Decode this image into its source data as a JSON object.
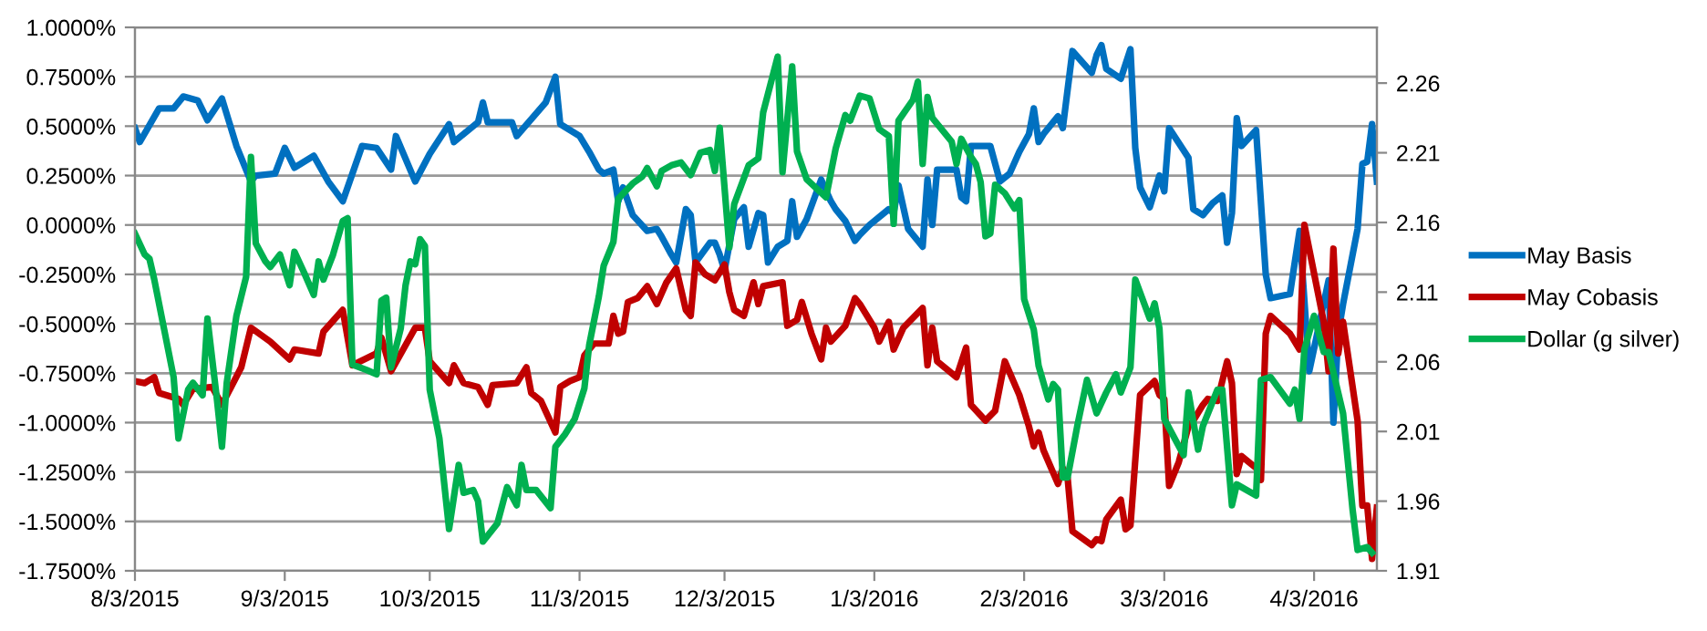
{
  "chart_data": {
    "type": "line",
    "legend": "right",
    "grid": "y",
    "marker": "none",
    "line_style": "solid",
    "xlim": [
      "2015-08-03",
      "2016-04-16"
    ],
    "xticks": [
      {
        "value": "2015-08-03",
        "label": "8/3/2015"
      },
      {
        "value": "2015-09-03",
        "label": "9/3/2015"
      },
      {
        "value": "2015-10-03",
        "label": "10/3/2015"
      },
      {
        "value": "2015-11-03",
        "label": "11/3/2015"
      },
      {
        "value": "2015-12-03",
        "label": "12/3/2015"
      },
      {
        "value": "2016-01-03",
        "label": "1/3/2016"
      },
      {
        "value": "2016-02-03",
        "label": "2/3/2016"
      },
      {
        "value": "2016-03-03",
        "label": "3/3/2016"
      },
      {
        "value": "2016-04-03",
        "label": "4/3/2016"
      }
    ],
    "ylim": [
      -1.75,
      1.0
    ],
    "yticks": [
      {
        "value": -1.75,
        "label": "-1.7500%"
      },
      {
        "value": -1.5,
        "label": "-1.5000%"
      },
      {
        "value": -1.25,
        "label": "-1.2500%"
      },
      {
        "value": -1.0,
        "label": "-1.0000%"
      },
      {
        "value": -0.75,
        "label": "-0.7500%"
      },
      {
        "value": -0.5,
        "label": "-0.5000%"
      },
      {
        "value": -0.25,
        "label": "-0.2500%"
      },
      {
        "value": 0,
        "label": "0.0000%"
      },
      {
        "value": 0.25,
        "label": "0.2500%"
      },
      {
        "value": 0.5,
        "label": "0.5000%"
      },
      {
        "value": 0.75,
        "label": "0.7500%"
      },
      {
        "value": 1.0,
        "label": "1.0000%"
      }
    ],
    "y2lim": [
      1.91,
      2.3
    ],
    "y2ticks": [
      1.91,
      1.96,
      2.01,
      2.06,
      2.11,
      2.16,
      2.21,
      2.26
    ],
    "series": [
      {
        "name": "May Basis",
        "color": "#0070c0",
        "x": [
          "2015-08-03",
          "2015-08-04",
          "2015-08-08",
          "2015-08-11",
          "2015-08-13",
          "2015-08-16",
          "2015-08-18",
          "2015-08-21",
          "2015-08-24",
          "2015-08-27",
          "2015-08-28",
          "2015-09-01",
          "2015-09-03",
          "2015-09-05",
          "2015-09-09",
          "2015-09-12",
          "2015-09-15",
          "2015-09-19",
          "2015-09-22",
          "2015-09-25",
          "2015-09-26",
          "2015-09-30",
          "2015-10-03",
          "2015-10-07",
          "2015-10-08",
          "2015-10-13",
          "2015-10-14",
          "2015-10-15",
          "2015-10-20",
          "2015-10-21",
          "2015-10-27",
          "2015-10-29",
          "2015-10-30",
          "2015-11-03",
          "2015-11-05",
          "2015-11-07",
          "2015-11-08",
          "2015-11-10",
          "2015-11-11",
          "2015-11-12",
          "2015-11-14",
          "2015-11-17",
          "2015-11-19",
          "2015-11-20",
          "2015-11-22",
          "2015-11-23",
          "2015-11-25",
          "2015-11-26",
          "2015-11-27",
          "2015-11-30",
          "2015-12-01",
          "2015-12-02",
          "2015-12-03",
          "2015-12-05",
          "2015-12-07",
          "2015-12-08",
          "2015-12-10",
          "2015-12-11",
          "2015-12-12",
          "2015-12-14",
          "2015-12-16",
          "2015-12-17",
          "2015-12-18",
          "2015-12-20",
          "2015-12-23",
          "2015-12-25",
          "2015-12-26",
          "2015-12-28",
          "2015-12-30",
          "2015-12-31",
          "2016-01-02",
          "2016-01-06",
          "2016-01-07",
          "2016-01-08",
          "2016-01-10",
          "2016-01-13",
          "2016-01-14",
          "2016-01-15",
          "2016-01-16",
          "2016-01-20",
          "2016-01-21",
          "2016-01-22",
          "2016-01-23",
          "2016-01-24",
          "2016-01-27",
          "2016-01-29",
          "2016-01-31",
          "2016-02-02",
          "2016-02-04",
          "2016-02-05",
          "2016-02-06",
          "2016-02-07",
          "2016-02-10",
          "2016-02-11",
          "2016-02-13",
          "2016-02-17",
          "2016-02-18",
          "2016-02-19",
          "2016-02-20",
          "2016-02-23",
          "2016-02-25",
          "2016-02-26",
          "2016-02-27",
          "2016-02-29",
          "2016-03-02",
          "2016-03-03",
          "2016-03-04",
          "2016-03-08",
          "2016-03-09",
          "2016-03-11",
          "2016-03-13",
          "2016-03-15",
          "2016-03-16",
          "2016-03-17",
          "2016-03-18",
          "2016-03-19",
          "2016-03-22",
          "2016-03-24",
          "2016-03-25",
          "2016-03-29",
          "2016-03-31",
          "2016-04-02",
          "2016-04-06",
          "2016-04-07",
          "2016-04-08",
          "2016-04-09",
          "2016-04-12",
          "2016-04-13",
          "2016-04-14",
          "2016-04-15",
          "2016-04-16"
        ],
        "values": [
          0.49,
          0.42,
          0.59,
          0.59,
          0.65,
          0.63,
          0.53,
          0.64,
          0.4,
          0.22,
          0.25,
          0.26,
          0.39,
          0.29,
          0.35,
          0.22,
          0.12,
          0.4,
          0.39,
          0.28,
          0.45,
          0.22,
          0.36,
          0.51,
          0.42,
          0.52,
          0.62,
          0.52,
          0.52,
          0.45,
          0.62,
          0.75,
          0.51,
          0.45,
          0.37,
          0.28,
          0.26,
          0.28,
          0.12,
          0.19,
          0.05,
          -0.03,
          -0.02,
          -0.06,
          -0.15,
          -0.19,
          0.08,
          0.05,
          -0.19,
          -0.09,
          -0.09,
          -0.15,
          -0.23,
          0.03,
          0.09,
          -0.11,
          0.06,
          0.05,
          -0.19,
          -0.11,
          -0.08,
          0.12,
          -0.06,
          0.03,
          0.23,
          0.12,
          0.08,
          0.02,
          -0.08,
          -0.05,
          0.0,
          0.08,
          0.06,
          0.2,
          -0.02,
          -0.11,
          0.23,
          0.0,
          0.28,
          0.28,
          0.14,
          0.12,
          0.4,
          0.4,
          0.4,
          0.22,
          0.26,
          0.37,
          0.46,
          0.59,
          0.42,
          0.46,
          0.55,
          0.49,
          0.88,
          0.77,
          0.86,
          0.91,
          0.79,
          0.74,
          0.89,
          0.39,
          0.19,
          0.09,
          0.25,
          0.17,
          0.49,
          0.34,
          0.08,
          0.05,
          0.11,
          0.15,
          -0.09,
          0.06,
          0.54,
          0.4,
          0.48,
          -0.25,
          -0.37,
          -0.35,
          -0.03,
          -0.74,
          -0.28,
          -1.0,
          -0.55,
          -0.4,
          -0.02,
          0.31,
          0.32,
          0.51,
          0.22
        ]
      },
      {
        "name": "May Cobasis",
        "color": "#c00000",
        "x": [
          "2015-08-03",
          "2015-08-05",
          "2015-08-07",
          "2015-08-08",
          "2015-08-12",
          "2015-08-13",
          "2015-08-15",
          "2015-08-19",
          "2015-08-21",
          "2015-08-25",
          "2015-08-27",
          "2015-08-31",
          "2015-09-04",
          "2015-09-05",
          "2015-09-10",
          "2015-09-11",
          "2015-09-15",
          "2015-09-17",
          "2015-09-22",
          "2015-09-23",
          "2015-09-25",
          "2015-09-30",
          "2015-10-02",
          "2015-10-03",
          "2015-10-07",
          "2015-10-08",
          "2015-10-10",
          "2015-10-13",
          "2015-10-15",
          "2015-10-16",
          "2015-10-21",
          "2015-10-23",
          "2015-10-24",
          "2015-10-26",
          "2015-10-29",
          "2015-10-30",
          "2015-11-01",
          "2015-11-03",
          "2015-11-04",
          "2015-11-06",
          "2015-11-09",
          "2015-11-10",
          "2015-11-11",
          "2015-11-12",
          "2015-11-13",
          "2015-11-15",
          "2015-11-17",
          "2015-11-19",
          "2015-11-21",
          "2015-11-23",
          "2015-11-25",
          "2015-11-26",
          "2015-11-27",
          "2015-11-29",
          "2015-12-01",
          "2015-12-03",
          "2015-12-04",
          "2015-12-05",
          "2015-12-07",
          "2015-12-09",
          "2015-12-10",
          "2015-12-11",
          "2015-12-15",
          "2015-12-16",
          "2015-12-18",
          "2015-12-19",
          "2015-12-21",
          "2015-12-23",
          "2015-12-24",
          "2015-12-25",
          "2015-12-28",
          "2015-12-30",
          "2015-12-31",
          "2016-01-03",
          "2016-01-04",
          "2016-01-06",
          "2016-01-07",
          "2016-01-09",
          "2016-01-13",
          "2016-01-14",
          "2016-01-15",
          "2016-01-16",
          "2016-01-20",
          "2016-01-22",
          "2016-01-23",
          "2016-01-26",
          "2016-01-28",
          "2016-01-30",
          "2016-02-02",
          "2016-02-04",
          "2016-02-05",
          "2016-02-06",
          "2016-02-07",
          "2016-02-10",
          "2016-02-11",
          "2016-02-12",
          "2016-02-13",
          "2016-02-17",
          "2016-02-18",
          "2016-02-19",
          "2016-02-20",
          "2016-02-23",
          "2016-02-24",
          "2016-02-25",
          "2016-02-27",
          "2016-03-01",
          "2016-03-02",
          "2016-03-03",
          "2016-03-04",
          "2016-03-06",
          "2016-03-08",
          "2016-03-09",
          "2016-03-11",
          "2016-03-12",
          "2016-03-14",
          "2016-03-16",
          "2016-03-17",
          "2016-03-18",
          "2016-03-19",
          "2016-03-22",
          "2016-03-23",
          "2016-03-24",
          "2016-03-25",
          "2016-03-29",
          "2016-03-31",
          "2016-04-01",
          "2016-04-05",
          "2016-04-06",
          "2016-04-07",
          "2016-04-08",
          "2016-04-09",
          "2016-04-12",
          "2016-04-13",
          "2016-04-14",
          "2016-04-15",
          "2016-04-16"
        ],
        "values": [
          -0.79,
          -0.8,
          -0.77,
          -0.85,
          -0.88,
          -0.91,
          -0.83,
          -0.82,
          -0.91,
          -0.72,
          -0.52,
          -0.59,
          -0.68,
          -0.63,
          -0.65,
          -0.54,
          -0.43,
          -0.71,
          -0.65,
          -0.57,
          -0.74,
          -0.52,
          -0.52,
          -0.69,
          -0.8,
          -0.71,
          -0.8,
          -0.82,
          -0.91,
          -0.81,
          -0.8,
          -0.72,
          -0.85,
          -0.89,
          -1.05,
          -0.82,
          -0.79,
          -0.77,
          -0.66,
          -0.6,
          -0.6,
          -0.46,
          -0.55,
          -0.54,
          -0.39,
          -0.37,
          -0.31,
          -0.4,
          -0.29,
          -0.22,
          -0.43,
          -0.46,
          -0.19,
          -0.25,
          -0.28,
          -0.2,
          -0.34,
          -0.43,
          -0.46,
          -0.29,
          -0.4,
          -0.31,
          -0.29,
          -0.51,
          -0.48,
          -0.39,
          -0.55,
          -0.68,
          -0.52,
          -0.59,
          -0.51,
          -0.37,
          -0.4,
          -0.52,
          -0.59,
          -0.49,
          -0.63,
          -0.52,
          -0.42,
          -0.71,
          -0.52,
          -0.69,
          -0.77,
          -0.62,
          -0.91,
          -0.99,
          -0.94,
          -0.69,
          -0.86,
          -1.02,
          -1.12,
          -1.05,
          -1.14,
          -1.31,
          -1.23,
          -1.28,
          -1.55,
          -1.62,
          -1.59,
          -1.6,
          -1.49,
          -1.39,
          -1.54,
          -1.52,
          -0.86,
          -0.79,
          -0.86,
          -0.88,
          -1.32,
          -1.2,
          -1.02,
          -0.99,
          -0.91,
          -0.88,
          -0.89,
          -0.69,
          -0.8,
          -1.26,
          -1.17,
          -1.23,
          -1.29,
          -0.55,
          -0.46,
          -0.55,
          -0.63,
          0.0,
          -0.49,
          -0.74,
          -0.12,
          -0.65,
          -0.49,
          -0.99,
          -1.42,
          -1.42,
          -1.69,
          -1.43
        ]
      },
      {
        "name": "Dollar (g silver)",
        "color": "#00b050",
        "axis": "y2",
        "x": [
          "2015-08-03",
          "2015-08-05",
          "2015-08-06",
          "2015-08-07",
          "2015-08-09",
          "2015-08-11",
          "2015-08-12",
          "2015-08-14",
          "2015-08-15",
          "2015-08-17",
          "2015-08-18",
          "2015-08-20",
          "2015-08-21",
          "2015-08-22",
          "2015-08-24",
          "2015-08-26",
          "2015-08-27",
          "2015-08-28",
          "2015-08-30",
          "2015-08-31",
          "2015-09-02",
          "2015-09-04",
          "2015-09-05",
          "2015-09-07",
          "2015-09-09",
          "2015-09-10",
          "2015-09-11",
          "2015-09-13",
          "2015-09-15",
          "2015-09-16",
          "2015-09-17",
          "2015-09-20",
          "2015-09-22",
          "2015-09-23",
          "2015-09-24",
          "2015-09-25",
          "2015-09-27",
          "2015-09-28",
          "2015-09-29",
          "2015-09-30",
          "2015-10-01",
          "2015-10-02",
          "2015-10-03",
          "2015-10-05",
          "2015-10-07",
          "2015-10-09",
          "2015-10-10",
          "2015-10-12",
          "2015-10-13",
          "2015-10-14",
          "2015-10-17",
          "2015-10-19",
          "2015-10-21",
          "2015-10-22",
          "2015-10-23",
          "2015-10-25",
          "2015-10-28",
          "2015-10-29",
          "2015-10-31",
          "2015-11-02",
          "2015-11-04",
          "2015-11-05",
          "2015-11-07",
          "2015-11-08",
          "2015-11-10",
          "2015-11-11",
          "2015-11-14",
          "2015-11-16",
          "2015-11-17",
          "2015-11-19",
          "2015-11-20",
          "2015-11-22",
          "2015-11-24",
          "2015-11-26",
          "2015-11-28",
          "2015-11-30",
          "2015-12-01",
          "2015-12-02",
          "2015-12-04",
          "2015-12-05",
          "2015-12-08",
          "2015-12-10",
          "2015-12-11",
          "2015-12-14",
          "2015-12-15",
          "2015-12-17",
          "2015-12-18",
          "2015-12-20",
          "2015-12-24",
          "2015-12-26",
          "2015-12-28",
          "2015-12-29",
          "2015-12-31",
          "2016-01-02",
          "2016-01-04",
          "2016-01-06",
          "2016-01-07",
          "2016-01-08",
          "2016-01-11",
          "2016-01-12",
          "2016-01-13",
          "2016-01-14",
          "2016-01-15",
          "2016-01-19",
          "2016-01-20",
          "2016-01-21",
          "2016-01-23",
          "2016-01-24",
          "2016-01-25",
          "2016-01-26",
          "2016-01-27",
          "2016-01-28",
          "2016-01-30",
          "2016-02-01",
          "2016-02-02",
          "2016-02-03",
          "2016-02-05",
          "2016-02-06",
          "2016-02-08",
          "2016-02-09",
          "2016-02-10",
          "2016-02-11",
          "2016-02-12",
          "2016-02-14",
          "2016-02-16",
          "2016-02-18",
          "2016-02-20",
          "2016-02-22",
          "2016-02-23",
          "2016-02-25",
          "2016-02-26",
          "2016-02-29",
          "2016-03-01",
          "2016-03-02",
          "2016-03-03",
          "2016-03-07",
          "2016-03-08",
          "2016-03-10",
          "2016-03-11",
          "2016-03-14",
          "2016-03-15",
          "2016-03-17",
          "2016-03-18",
          "2016-03-22",
          "2016-03-23",
          "2016-03-25",
          "2016-03-29",
          "2016-03-30",
          "2016-03-31",
          "2016-04-01",
          "2016-04-03",
          "2016-04-05",
          "2016-04-06",
          "2016-04-09",
          "2016-04-11",
          "2016-04-12",
          "2016-04-14",
          "2016-04-15"
        ],
        "values": [
          2.152,
          2.137,
          2.134,
          2.119,
          2.084,
          2.049,
          2.005,
          2.04,
          2.045,
          2.036,
          2.091,
          2.032,
          1.999,
          2.045,
          2.093,
          2.121,
          2.207,
          2.145,
          2.132,
          2.128,
          2.137,
          2.115,
          2.139,
          2.124,
          2.108,
          2.132,
          2.119,
          2.137,
          2.161,
          2.163,
          2.058,
          2.054,
          2.051,
          2.104,
          2.106,
          2.056,
          2.084,
          2.115,
          2.132,
          2.13,
          2.148,
          2.143,
          2.04,
          2.005,
          1.94,
          1.986,
          1.966,
          1.968,
          1.96,
          1.931,
          1.944,
          1.97,
          1.957,
          1.986,
          1.968,
          1.968,
          1.955,
          1.999,
          2.008,
          2.019,
          2.041,
          2.072,
          2.107,
          2.129,
          2.146,
          2.177,
          2.188,
          2.193,
          2.199,
          2.186,
          2.197,
          2.201,
          2.203,
          2.194,
          2.21,
          2.212,
          2.197,
          2.228,
          2.142,
          2.173,
          2.201,
          2.206,
          2.239,
          2.279,
          2.196,
          2.272,
          2.211,
          2.191,
          2.178,
          2.213,
          2.237,
          2.233,
          2.251,
          2.249,
          2.227,
          2.222,
          2.159,
          2.233,
          2.248,
          2.261,
          2.202,
          2.25,
          2.235,
          2.218,
          2.202,
          2.22,
          2.207,
          2.202,
          2.189,
          2.15,
          2.152,
          2.187,
          2.181,
          2.17,
          2.176,
          2.105,
          2.083,
          2.057,
          2.033,
          2.044,
          2.04,
          1.977,
          1.977,
          2.014,
          2.047,
          2.023,
          2.038,
          2.051,
          2.038,
          2.056,
          2.119,
          2.091,
          2.102,
          2.084,
          2.019,
          1.993,
          2.038,
          1.997,
          2.014,
          2.04,
          2.04,
          1.957,
          1.972,
          1.964,
          2.047,
          2.049,
          2.03,
          2.04,
          2.019,
          2.069,
          2.093,
          2.067,
          2.067,
          2.023,
          1.953,
          1.925,
          1.927,
          1.923
        ]
      }
    ]
  }
}
